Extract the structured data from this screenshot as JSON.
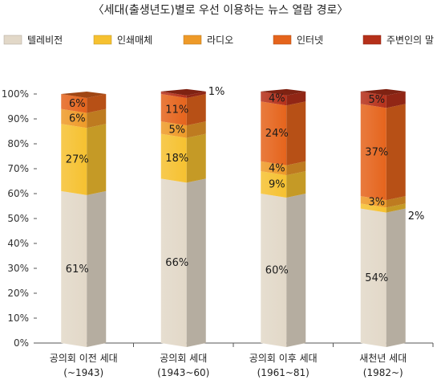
{
  "chart_data": {
    "type": "bar",
    "stacked": true,
    "title": "〈세대(출생년도)별로 우선 이용하는 뉴스 열람 경로〉",
    "ylim": [
      0,
      100
    ],
    "yticks": [
      "0%",
      "10%",
      "20%",
      "30%",
      "40%",
      "50%",
      "60%",
      "70%",
      "80%",
      "90%",
      "100%"
    ],
    "categories": [
      {
        "line1": "공의회 이전 세대",
        "line2": "(~1943)"
      },
      {
        "line1": "공의회 세대",
        "line2": "(1943~60)"
      },
      {
        "line1": "공의회 이후 세대",
        "line2": "(1961~81)"
      },
      {
        "line1": "새천년 세대",
        "line2": "(1982~)"
      }
    ],
    "series": [
      {
        "name": "텔레비전",
        "color": "#e2d8c8",
        "values": [
          61,
          66,
          60,
          54
        ],
        "labels": [
          "61%",
          "66%",
          "60%",
          "54%"
        ]
      },
      {
        "name": "인쇄매체",
        "color": "#f6c130",
        "values": [
          27,
          18,
          9,
          2
        ],
        "labels": [
          "27%",
          "18%",
          "9%",
          "2%"
        ]
      },
      {
        "name": "라디오",
        "color": "#ee9a28",
        "values": [
          6,
          5,
          4,
          3
        ],
        "labels": [
          "6%",
          "5%",
          "4%",
          "3%"
        ]
      },
      {
        "name": "인터넷",
        "color": "#e5641c",
        "values": [
          6,
          11,
          24,
          37
        ],
        "labels": [
          "6%",
          "11%",
          "24%",
          "37%"
        ]
      },
      {
        "name": "주변인의 말",
        "color": "#b5301a",
        "values": [
          0,
          1,
          4,
          5
        ],
        "labels": [
          "",
          "1%",
          "4%",
          "5%"
        ]
      }
    ],
    "grid": false,
    "legend": "top"
  }
}
